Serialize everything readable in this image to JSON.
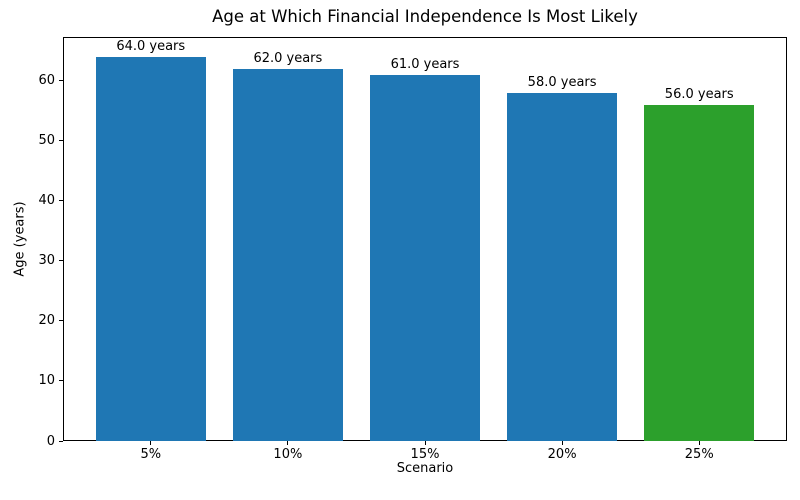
{
  "chart_data": {
    "type": "bar",
    "title": "Age at Which Financial Independence Is Most Likely",
    "xlabel": "Scenario",
    "ylabel": "Age (years)",
    "categories": [
      "5%",
      "10%",
      "15%",
      "20%",
      "25%"
    ],
    "values": [
      64.0,
      62.0,
      61.0,
      58.0,
      56.0
    ],
    "bar_labels": [
      "64.0 years",
      "62.0 years",
      "61.0 years",
      "58.0 years",
      "56.0 years"
    ],
    "bar_colors": [
      "#1f77b4",
      "#1f77b4",
      "#1f77b4",
      "#1f77b4",
      "#2ca02c"
    ],
    "ylim": [
      0,
      67.3
    ],
    "yticks": [
      0,
      10,
      20,
      30,
      40,
      50,
      60
    ],
    "grid": false,
    "legend": "none",
    "background_color": "#ffffff",
    "text_color": "#000000"
  }
}
